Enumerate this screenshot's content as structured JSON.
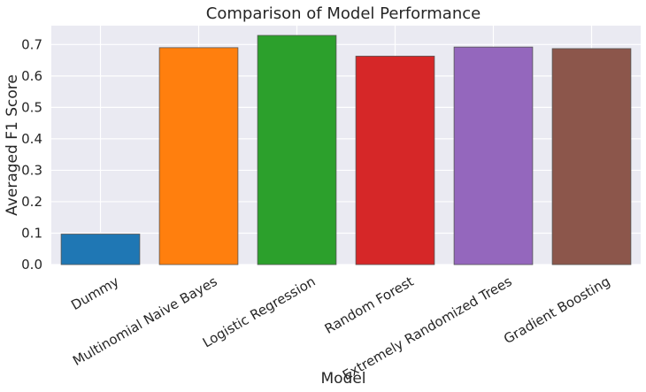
{
  "chart_data": {
    "type": "bar",
    "title": "Comparison of Model Performance",
    "xlabel": "Model",
    "ylabel": "Averaged F1 Score",
    "categories": [
      "Dummy",
      "Multinomial Naive Bayes",
      "Logistic Regression",
      "Random Forest",
      "Extremely Randomized Trees",
      "Gradient Boosting"
    ],
    "values": [
      0.097,
      0.69,
      0.729,
      0.663,
      0.692,
      0.687
    ],
    "colors": [
      "#1f77b4",
      "#ff7f0e",
      "#2ca02c",
      "#d62728",
      "#9467bd",
      "#8c564b"
    ],
    "ylim": [
      0,
      0.76
    ],
    "yticks": [
      0.0,
      0.1,
      0.2,
      0.3,
      0.4,
      0.5,
      0.6,
      0.7
    ],
    "ytick_labels": [
      "0.0",
      "0.1",
      "0.2",
      "0.3",
      "0.4",
      "0.5",
      "0.6",
      "0.7"
    ],
    "grid": true,
    "background": "#eaeaf2"
  }
}
